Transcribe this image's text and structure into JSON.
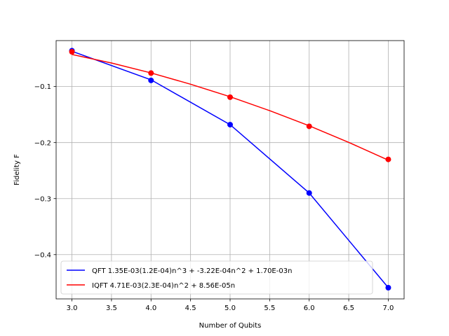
{
  "chart_data": {
    "type": "line",
    "title": "",
    "xlabel": "Number of Qubits",
    "ylabel": "Fidelity F",
    "xlim": [
      2.8,
      7.2
    ],
    "ylim": [
      -0.479,
      -0.018
    ],
    "grid": true,
    "legend_position": "lower-left",
    "x_ticks": [
      3.0,
      3.5,
      4.0,
      4.5,
      5.0,
      5.5,
      6.0,
      6.5,
      7.0
    ],
    "x_tick_labels": [
      "3.0",
      "3.5",
      "4.0",
      "4.5",
      "5.0",
      "5.5",
      "6.0",
      "6.5",
      "7.0"
    ],
    "y_ticks": [
      -0.1,
      -0.2,
      -0.3,
      -0.4
    ],
    "y_tick_labels": [
      "−0.1",
      "−0.2",
      "−0.3",
      "−0.4"
    ],
    "series": [
      {
        "name": "QFT 1.35E-03(1.2E-04)n^3 + -3.22E-04n^2 + 1.70E-03n",
        "color": "#0000ff",
        "fit": [
          {
            "x": 3,
            "y": -0.037
          },
          {
            "x": 4,
            "y": -0.088
          },
          {
            "x": 5,
            "y": -0.168
          },
          {
            "x": 6,
            "y": -0.29
          },
          {
            "x": 7,
            "y": -0.459
          }
        ],
        "points": [
          {
            "x": 3,
            "y": -0.036
          },
          {
            "x": 4,
            "y": -0.089
          },
          {
            "x": 5,
            "y": -0.168
          },
          {
            "x": 6,
            "y": -0.29
          },
          {
            "x": 7,
            "y": -0.459
          }
        ]
      },
      {
        "name": "IQFT 4.71E-03(2.3E-04)n^2 + 8.56E-05n",
        "color": "#ff0000",
        "fit": [
          {
            "x": 3,
            "y": -0.0427
          },
          {
            "x": 3.5,
            "y": -0.058
          },
          {
            "x": 4,
            "y": -0.0757
          },
          {
            "x": 4.5,
            "y": -0.0958
          },
          {
            "x": 5,
            "y": -0.1182
          },
          {
            "x": 5.5,
            "y": -0.143
          },
          {
            "x": 6,
            "y": -0.1701
          },
          {
            "x": 6.5,
            "y": -0.1996
          },
          {
            "x": 7,
            "y": -0.2314
          }
        ],
        "points": [
          {
            "x": 3,
            "y": -0.038
          },
          {
            "x": 4,
            "y": -0.076
          },
          {
            "x": 5,
            "y": -0.119
          },
          {
            "x": 6,
            "y": -0.171
          },
          {
            "x": 7,
            "y": -0.23
          }
        ]
      }
    ]
  }
}
